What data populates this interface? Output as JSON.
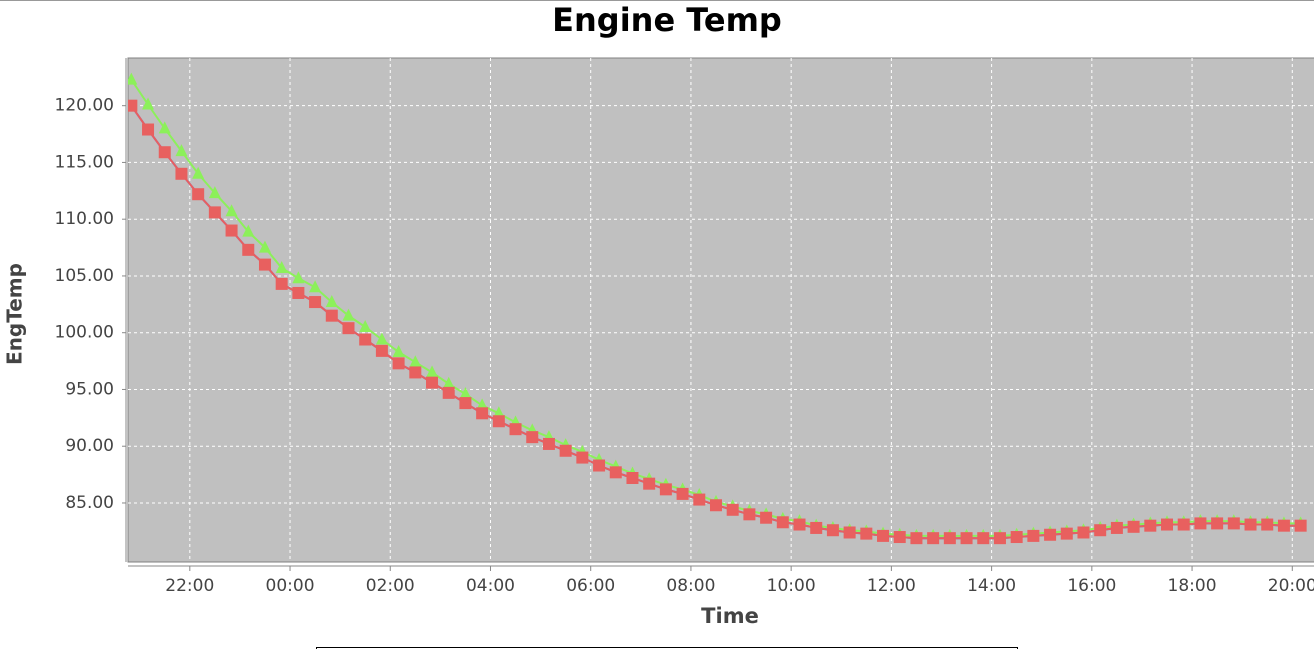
{
  "chart_data": {
    "type": "line",
    "title": "Engine Temp",
    "x_label": "Time",
    "y_label": "EngTemp",
    "x": [
      "20:50",
      "21:10",
      "21:30",
      "21:50",
      "22:10",
      "22:30",
      "22:50",
      "23:10",
      "23:30",
      "23:50",
      "00:10",
      "00:30",
      "00:50",
      "01:10",
      "01:30",
      "01:50",
      "02:10",
      "02:30",
      "02:50",
      "03:10",
      "03:30",
      "03:50",
      "04:10",
      "04:30",
      "04:50",
      "05:10",
      "05:30",
      "05:50",
      "06:10",
      "06:30",
      "06:50",
      "07:10",
      "07:30",
      "07:50",
      "08:10",
      "08:30",
      "08:50",
      "09:10",
      "09:30",
      "09:50",
      "10:10",
      "10:30",
      "10:50",
      "11:10",
      "11:30",
      "11:50",
      "12:10",
      "12:30",
      "12:50",
      "13:10",
      "13:30",
      "13:50",
      "14:10",
      "14:30",
      "14:50",
      "15:10",
      "15:30",
      "15:50",
      "16:10",
      "16:30",
      "16:50",
      "17:10",
      "17:30",
      "17:50",
      "18:10",
      "18:30",
      "18:50",
      "19:10",
      "19:30",
      "19:50",
      "20:10"
    ],
    "series": [
      {
        "color": "#8cf05a",
        "marker": "triangle",
        "values": [
          122.3,
          120.1,
          118.0,
          116.0,
          114.0,
          112.3,
          110.7,
          108.9,
          107.5,
          105.7,
          104.8,
          104.0,
          102.7,
          101.5,
          100.5,
          99.4,
          98.3,
          97.4,
          96.5,
          95.5,
          94.6,
          93.6,
          92.9,
          92.1,
          91.4,
          90.8,
          90.1,
          89.5,
          88.8,
          88.2,
          87.6,
          87.1,
          86.6,
          86.2,
          85.7,
          85.1,
          84.7,
          84.3,
          84.0,
          83.6,
          83.4,
          83.0,
          82.8,
          82.6,
          82.5,
          82.3,
          82.2,
          82.1,
          82.1,
          82.1,
          82.1,
          82.1,
          82.1,
          82.2,
          82.3,
          82.4,
          82.5,
          82.6,
          82.8,
          83.0,
          83.1,
          83.2,
          83.3,
          83.3,
          83.4,
          83.4,
          83.4,
          83.3,
          83.3,
          83.2,
          83.2
        ]
      },
      {
        "color": "#5555ff",
        "marker": "none",
        "values": [
          120.0,
          117.9,
          115.9,
          114.0,
          112.2,
          110.6,
          109.0,
          107.3,
          106.0,
          104.3,
          103.5,
          102.7,
          101.5,
          100.4,
          99.4,
          98.4,
          97.3,
          96.5,
          95.6,
          94.7,
          93.8,
          92.9,
          92.2,
          91.5,
          90.8,
          90.2,
          89.6,
          89.0,
          88.3,
          87.7,
          87.2,
          86.7,
          86.2,
          85.8,
          85.3,
          84.8,
          84.4,
          84.0,
          83.7,
          83.3,
          83.1,
          82.8,
          82.6,
          82.4,
          82.3,
          82.1,
          82.0,
          81.9,
          81.9,
          81.9,
          81.9,
          81.9,
          81.9,
          82.0,
          82.1,
          82.2,
          82.3,
          82.4,
          82.6,
          82.8,
          82.9,
          83.0,
          83.1,
          83.1,
          83.2,
          83.2,
          83.2,
          83.1,
          83.1,
          83.0,
          83.0
        ]
      },
      {
        "color": "#e8605f",
        "marker": "square",
        "values": [
          120.0,
          117.9,
          115.9,
          114.0,
          112.2,
          110.6,
          109.0,
          107.3,
          106.0,
          104.3,
          103.5,
          102.7,
          101.5,
          100.4,
          99.4,
          98.4,
          97.3,
          96.5,
          95.6,
          94.7,
          93.8,
          92.9,
          92.2,
          91.5,
          90.8,
          90.2,
          89.6,
          89.0,
          88.3,
          87.7,
          87.2,
          86.7,
          86.2,
          85.8,
          85.3,
          84.8,
          84.4,
          84.0,
          83.7,
          83.3,
          83.1,
          82.8,
          82.6,
          82.4,
          82.3,
          82.1,
          82.0,
          81.9,
          81.9,
          81.9,
          81.9,
          81.9,
          81.9,
          82.0,
          82.1,
          82.2,
          82.3,
          82.4,
          82.6,
          82.8,
          82.9,
          83.0,
          83.1,
          83.1,
          83.2,
          83.2,
          83.2,
          83.1,
          83.1,
          83.0,
          83.0
        ]
      }
    ],
    "xlim": [
      "20:46",
      "20:26"
    ],
    "xticks": [
      "22:00",
      "00:00",
      "02:00",
      "04:00",
      "06:00",
      "08:00",
      "10:00",
      "12:00",
      "14:00",
      "16:00",
      "18:00",
      "20:00"
    ],
    "ylim": [
      79.8,
      124.2
    ],
    "yticks": [
      {
        "value": 85,
        "label": "85.00"
      },
      {
        "value": 90,
        "label": "90.00"
      },
      {
        "value": 95,
        "label": "95.00"
      },
      {
        "value": 100,
        "label": "100.00"
      },
      {
        "value": 105,
        "label": "105.00"
      },
      {
        "value": 110,
        "label": "110.00"
      },
      {
        "value": 115,
        "label": "115.00"
      },
      {
        "value": 120,
        "label": "120.00"
      }
    ],
    "grid": true,
    "plot_background": "#c0c0c0"
  }
}
